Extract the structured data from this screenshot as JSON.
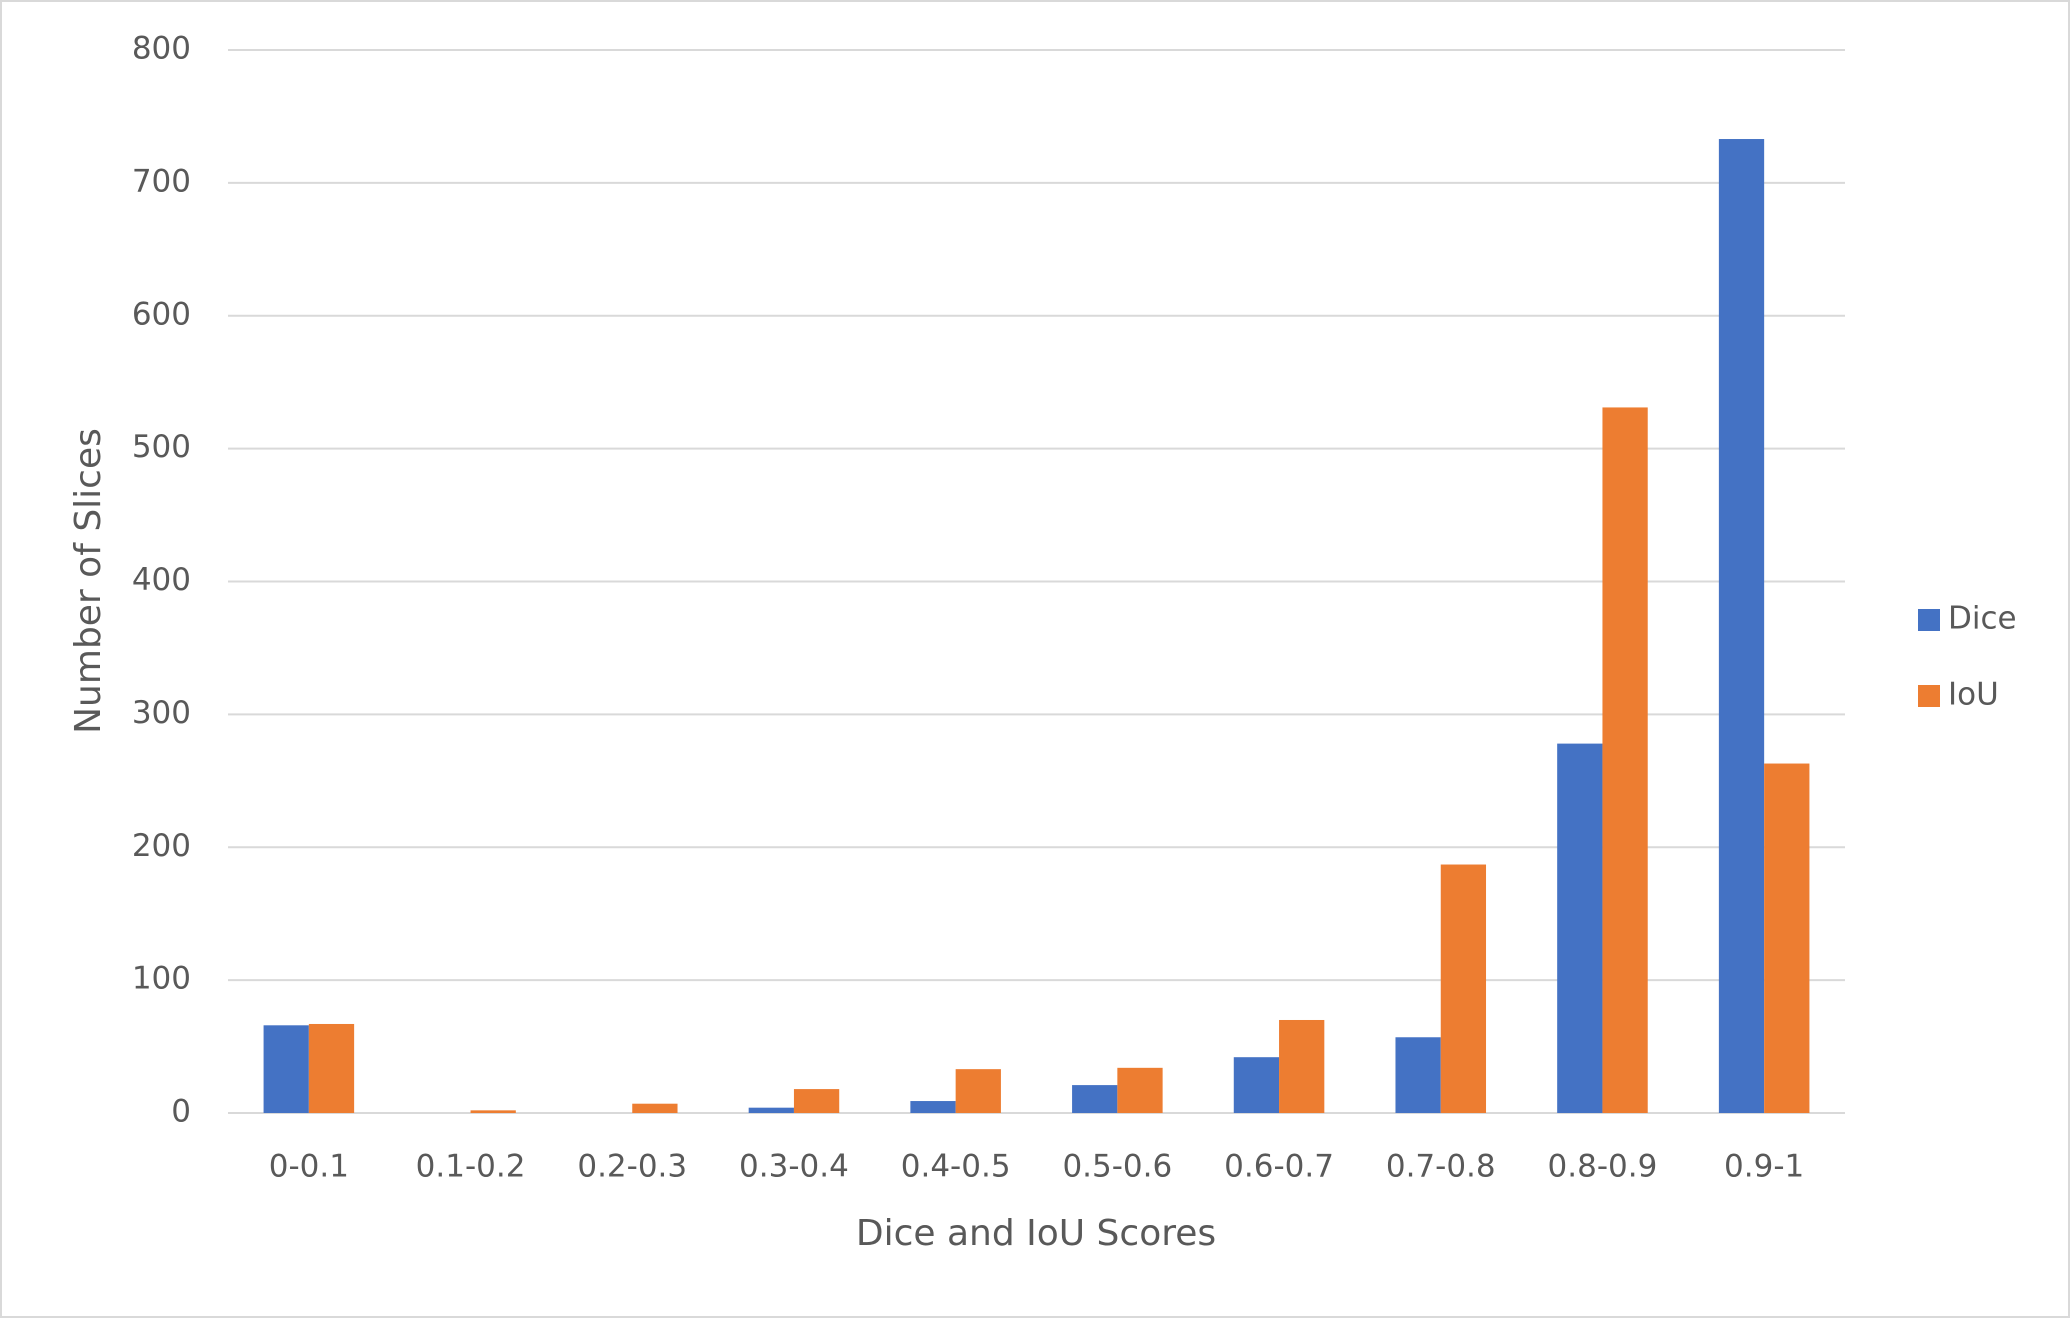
{
  "chart_data": {
    "type": "bar",
    "x_label": "Dice and IoU Scores",
    "y_label": "Number of Slices",
    "categories": [
      "0-0.1",
      "0.1-0.2",
      "0.2-0.3",
      "0.3-0.4",
      "0.4-0.5",
      "0.5-0.6",
      "0.6-0.7",
      "0.7-0.8",
      "0.8-0.9",
      "0.9-1"
    ],
    "series": [
      {
        "name": "Dice",
        "color": "#4472c4",
        "values": [
          66,
          0,
          0,
          4,
          9,
          21,
          42,
          57,
          278,
          733
        ]
      },
      {
        "name": "IoU",
        "color": "#ed7d31",
        "values": [
          67,
          2,
          7,
          18,
          33,
          34,
          70,
          187,
          531,
          263
        ]
      }
    ],
    "ylim": [
      0,
      800
    ],
    "yticks": [
      0,
      100,
      200,
      300,
      400,
      500,
      600,
      700,
      800
    ],
    "grid": true,
    "legend": "right"
  }
}
